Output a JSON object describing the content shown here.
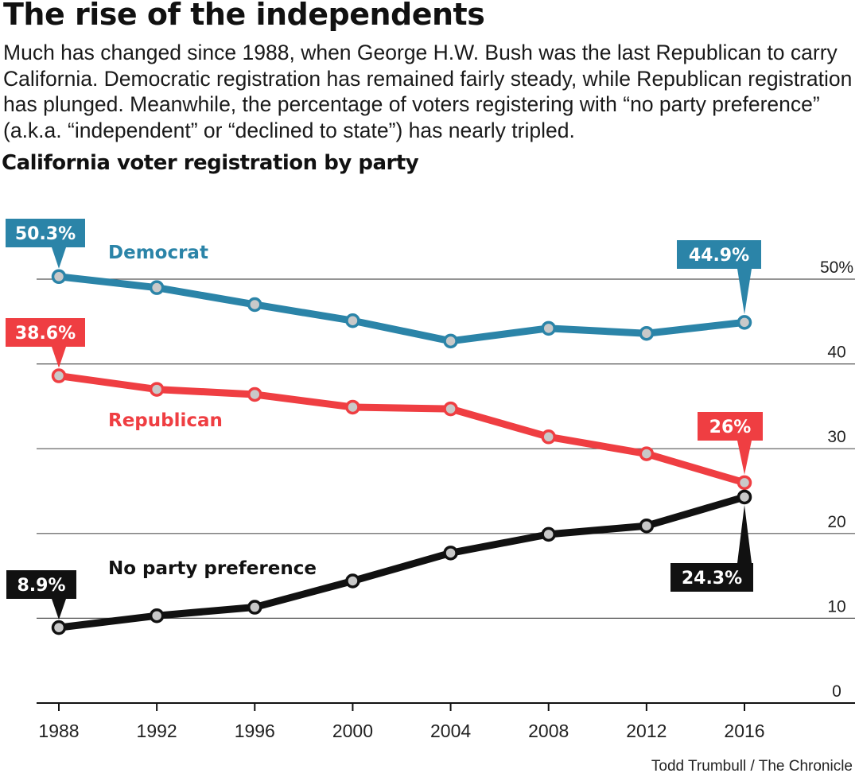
{
  "headline": "The rise of the independents",
  "dek": "Much has changed since 1988, when George H.W. Bush was the last Republican to carry California. Democratic registration has remained fairly steady, while Republican registration has plunged. Meanwhile, the percentage of voters registering with “no party preference” (a.k.a. “independent” or “declined to state”) has nearly tripled.",
  "credit": "Todd Trumbull / The Chronicle",
  "chart_data": {
    "type": "line",
    "title": "California voter registration by party",
    "x": [
      1988,
      1992,
      1996,
      2000,
      2004,
      2008,
      2012,
      2016
    ],
    "ylim": [
      0,
      50
    ],
    "yticks": [
      0,
      10,
      20,
      30,
      40,
      50
    ],
    "ytick_labels": [
      "0",
      "10",
      "20",
      "30",
      "40",
      "50%"
    ],
    "grid": true,
    "series": [
      {
        "name": "Democrat",
        "color": "#2b84a8",
        "values": [
          50.3,
          49.0,
          47.0,
          45.1,
          42.7,
          44.2,
          43.6,
          44.9
        ],
        "callouts": [
          {
            "index": 0,
            "label": "50.3%"
          },
          {
            "index": 7,
            "label": "44.9%"
          }
        ]
      },
      {
        "name": "Republican",
        "color": "#ef3e42",
        "values": [
          38.6,
          37.0,
          36.4,
          34.9,
          34.7,
          31.4,
          29.4,
          26.0
        ],
        "callouts": [
          {
            "index": 0,
            "label": "38.6%"
          },
          {
            "index": 7,
            "label": "26%"
          }
        ]
      },
      {
        "name": "No party preference",
        "color": "#111111",
        "values": [
          8.9,
          10.3,
          11.3,
          14.4,
          17.7,
          19.9,
          20.9,
          24.3
        ],
        "callouts": [
          {
            "index": 0,
            "label": "8.9%"
          },
          {
            "index": 7,
            "label": "24.3%"
          }
        ]
      }
    ]
  }
}
